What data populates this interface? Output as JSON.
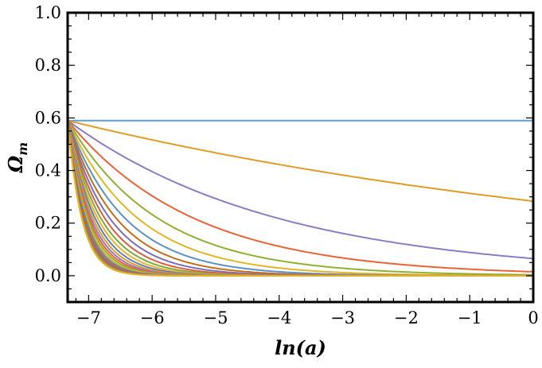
{
  "chart_data": {
    "type": "line",
    "title": "",
    "xlabel": "ln(a)",
    "ylabel": "Ω",
    "ylabel_subscript": "m",
    "xlim": [
      -7.33,
      0
    ],
    "ylim": [
      -0.1,
      1.0
    ],
    "x_ticks": [
      -7,
      -6,
      -5,
      -4,
      -3,
      -2,
      -1,
      0
    ],
    "x_tick_labels": [
      "−7",
      "−6",
      "−5",
      "−4",
      "−3",
      "−2",
      "−1",
      "0"
    ],
    "y_ticks": [
      0.0,
      0.2,
      0.4,
      0.6,
      0.8,
      1.0
    ],
    "y_tick_labels": [
      "0.0",
      "0.2",
      "0.4",
      "0.6",
      "0.8",
      "1.0"
    ],
    "grid": false,
    "legend": "none",
    "x_start": -7.33,
    "initial_value": 0.59,
    "series": [
      {
        "color": "#5e81b5",
        "decay_rate": 0.0,
        "end_value": 0.59
      },
      {
        "color": "#e19c24",
        "decay_rate": 0.1,
        "end_value": 0.29
      },
      {
        "color": "#8f7ac4",
        "decay_rate": 0.3,
        "end_value": 0.066
      },
      {
        "color": "#eb6235",
        "decay_rate": 0.5,
        "end_value": 0.015
      },
      {
        "color": "#8fb032",
        "decay_rate": 0.7,
        "end_value": 0.003
      },
      {
        "color": "#e4b526",
        "decay_rate": 0.9,
        "end_value": 0.001
      },
      {
        "color": "#5a92c8",
        "decay_rate": 1.1,
        "end_value": 0.0
      },
      {
        "color": "#c56e1a",
        "decay_rate": 1.3,
        "end_value": 0.0
      },
      {
        "color": "#7b6fb7",
        "decay_rate": 1.5,
        "end_value": 0.0
      },
      {
        "color": "#dd5d3a",
        "decay_rate": 1.7,
        "end_value": 0.0
      },
      {
        "color": "#7ea83a",
        "decay_rate": 1.9,
        "end_value": 0.0
      },
      {
        "color": "#e6b32c",
        "decay_rate": 2.1,
        "end_value": 0.0
      },
      {
        "color": "#5e81b5",
        "decay_rate": 2.3,
        "end_value": 0.0
      },
      {
        "color": "#e19c24",
        "decay_rate": 2.5,
        "end_value": 0.0
      },
      {
        "color": "#8f7ac4",
        "decay_rate": 2.7,
        "end_value": 0.0
      },
      {
        "color": "#eb6235",
        "decay_rate": 2.9,
        "end_value": 0.0
      },
      {
        "color": "#8fb032",
        "decay_rate": 3.1,
        "end_value": 0.0
      },
      {
        "color": "#e4b526",
        "decay_rate": 3.3,
        "end_value": 0.0
      },
      {
        "color": "#5a92c8",
        "decay_rate": 3.5,
        "end_value": 0.0
      },
      {
        "color": "#c56e1a",
        "decay_rate": 3.7,
        "end_value": 0.0
      },
      {
        "color": "#7b6fb7",
        "decay_rate": 3.9,
        "end_value": 0.0
      },
      {
        "color": "#dd5d3a",
        "decay_rate": 4.1,
        "end_value": 0.0
      },
      {
        "color": "#7ea83a",
        "decay_rate": 4.3,
        "end_value": 0.0
      },
      {
        "color": "#e6b32c",
        "decay_rate": 4.5,
        "end_value": 0.0
      }
    ],
    "colors": {
      "baseline_series": "#5e9ed6",
      "axis": "#000000"
    }
  }
}
